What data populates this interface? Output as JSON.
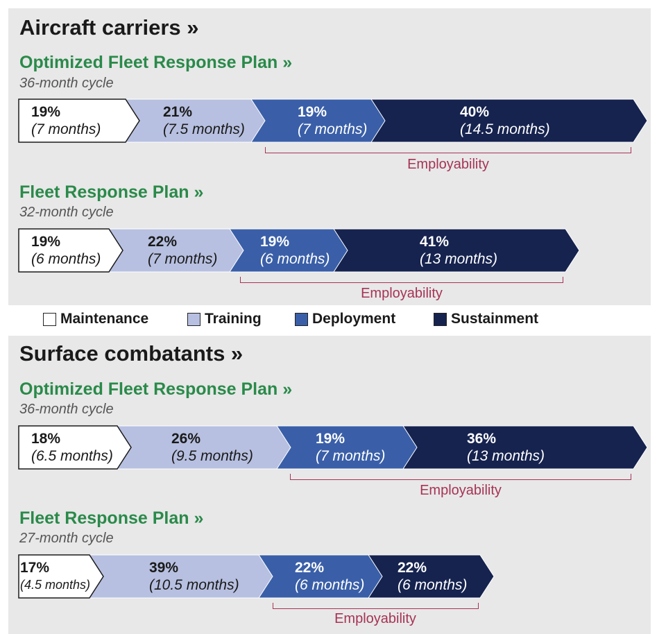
{
  "colors": {
    "maintenance": "#ffffff",
    "training": "#b7c0e0",
    "deployment": "#3a5fa8",
    "sustainment": "#16234f",
    "plan_title": "#2a8a4a",
    "employability": "#a63355"
  },
  "legend": [
    {
      "key": "maintenance",
      "label": "Maintenance"
    },
    {
      "key": "training",
      "label": "Training"
    },
    {
      "key": "deployment",
      "label": "Deployment"
    },
    {
      "key": "sustainment",
      "label": "Sustainment"
    }
  ],
  "sections": [
    {
      "title": "Aircraft carriers »",
      "plans": [
        {
          "title": "Optimized Fleet Response Plan »",
          "subtitle": "36-month cycle",
          "employability_label": "Employability",
          "segments": [
            {
              "phase": "maintenance",
              "percent": "19%",
              "duration": "(7 months)"
            },
            {
              "phase": "training",
              "percent": "21%",
              "duration": "(7.5 months)"
            },
            {
              "phase": "deployment",
              "percent": "19%",
              "duration": "(7 months)"
            },
            {
              "phase": "sustainment",
              "percent": "40%",
              "duration": "(14.5 months)"
            }
          ]
        },
        {
          "title": "Fleet Response Plan »",
          "subtitle": "32-month cycle",
          "employability_label": "Employability",
          "segments": [
            {
              "phase": "maintenance",
              "percent": "19%",
              "duration": "(6 months)"
            },
            {
              "phase": "training",
              "percent": "22%",
              "duration": "(7 months)"
            },
            {
              "phase": "deployment",
              "percent": "19%",
              "duration": "(6 months)"
            },
            {
              "phase": "sustainment",
              "percent": "41%",
              "duration": "(13 months)"
            }
          ]
        }
      ]
    },
    {
      "title": "Surface combatants »",
      "plans": [
        {
          "title": "Optimized Fleet Response Plan »",
          "subtitle": "36-month cycle",
          "employability_label": "Employability",
          "segments": [
            {
              "phase": "maintenance",
              "percent": "18%",
              "duration": "(6.5 months)"
            },
            {
              "phase": "training",
              "percent": "26%",
              "duration": "(9.5 months)"
            },
            {
              "phase": "deployment",
              "percent": "19%",
              "duration": "(7 months)"
            },
            {
              "phase": "sustainment",
              "percent": "36%",
              "duration": "(13 months)"
            }
          ]
        },
        {
          "title": "Fleet Response Plan »",
          "subtitle": "27-month cycle",
          "employability_label": "Employability",
          "segments": [
            {
              "phase": "maintenance",
              "percent": "17%",
              "duration": "(4.5 months)"
            },
            {
              "phase": "training",
              "percent": "39%",
              "duration": "(10.5 months)"
            },
            {
              "phase": "deployment",
              "percent": "22%",
              "duration": "(6 months)"
            },
            {
              "phase": "sustainment",
              "percent": "22%",
              "duration": "(6 months)"
            }
          ]
        }
      ]
    }
  ]
}
